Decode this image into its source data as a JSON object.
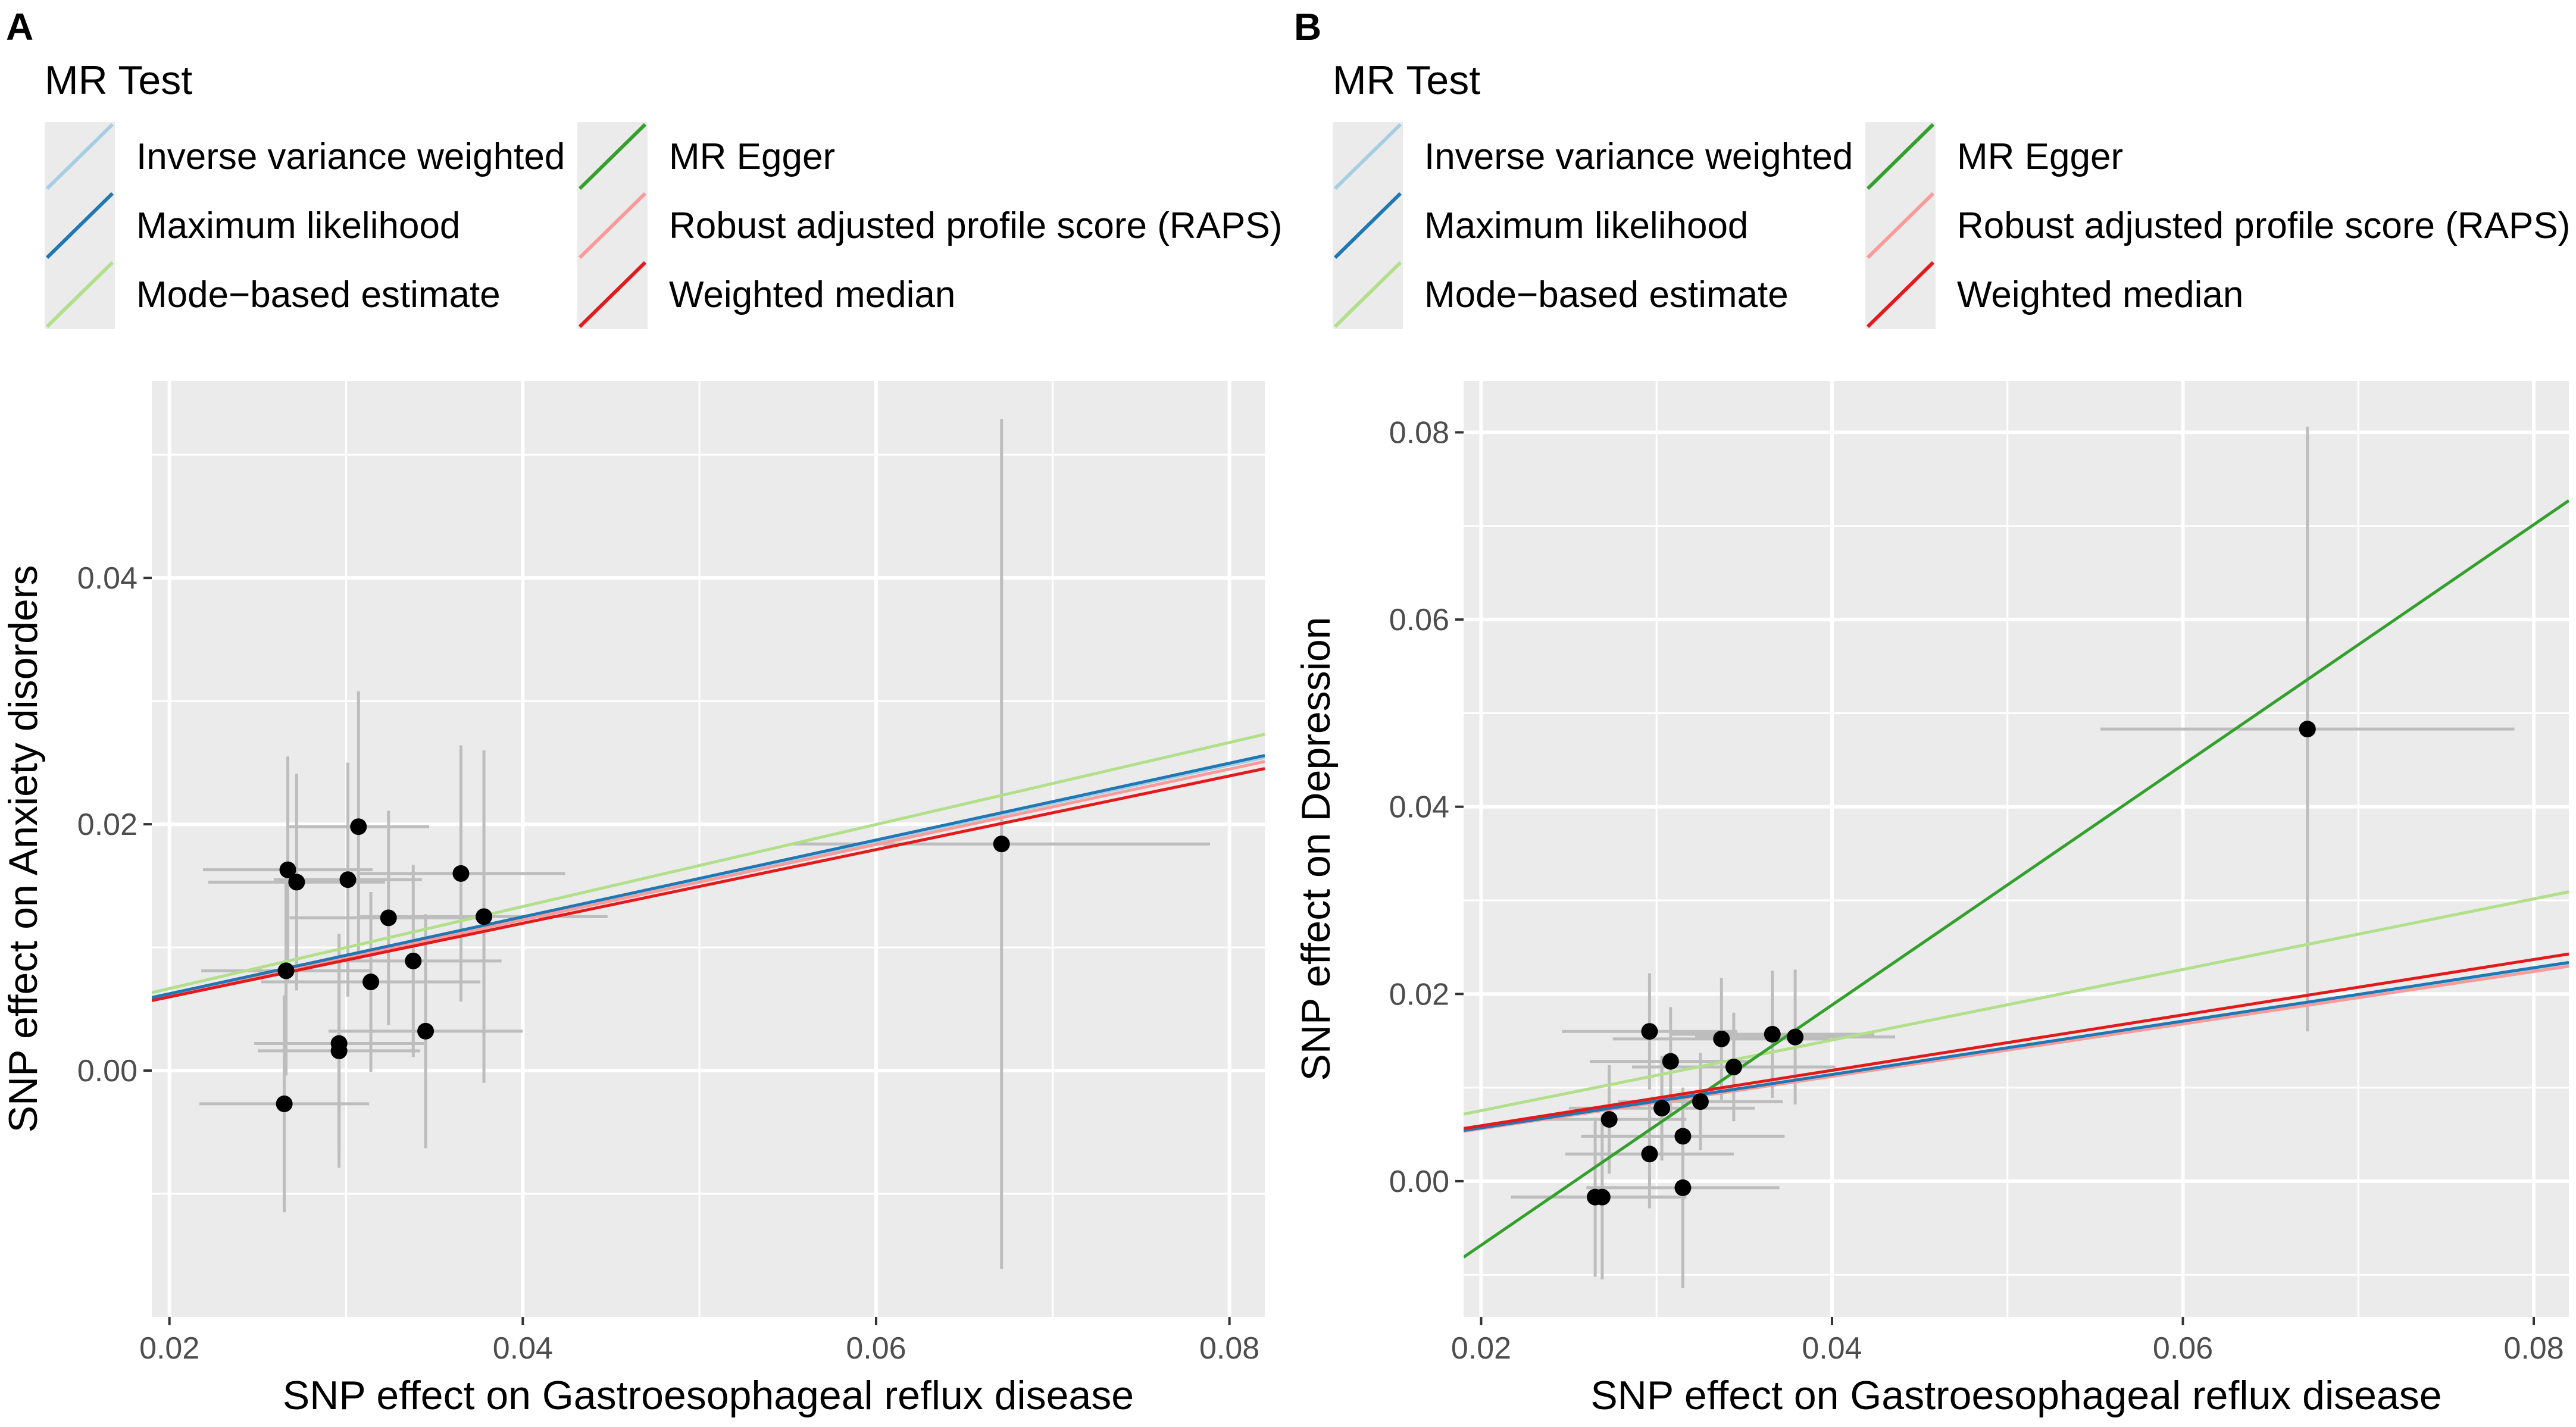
{
  "legend": {
    "title": "MR Test",
    "items": [
      {
        "label": "Inverse variance weighted",
        "color": "#a6cee3"
      },
      {
        "label": "Maximum likelihood",
        "color": "#1f78b4"
      },
      {
        "label": "Mode−based estimate",
        "color": "#b2df8a"
      },
      {
        "label": "MR Egger",
        "color": "#33a02c"
      },
      {
        "label": "Robust adjusted profile score (RAPS)",
        "color": "#fb9a99"
      },
      {
        "label": "Weighted median",
        "color": "#e31a1c"
      }
    ]
  },
  "chart_data": [
    {
      "panel": "A",
      "type": "scatter",
      "xlabel": "SNP effect on Gastroesophageal reflux disease",
      "ylabel": "SNP effect on Anxiety disorders",
      "xlim": [
        0.019,
        0.082
      ],
      "ylim": [
        -0.02,
        0.056
      ],
      "x_ticks": [
        0.02,
        0.04,
        0.06,
        0.08
      ],
      "x_tick_labels": [
        "0.02",
        "0.04",
        "0.06",
        "0.08"
      ],
      "y_ticks": [
        0.0,
        0.02,
        0.04
      ],
      "y_tick_labels": [
        "0.00",
        "0.02",
        "0.04"
      ],
      "points": [
        {
          "x": 0.0267,
          "y": 0.0163,
          "xerr": 0.0048,
          "yerr": 0.0092
        },
        {
          "x": 0.0272,
          "y": 0.0153,
          "xerr": 0.005,
          "yerr": 0.0088
        },
        {
          "x": 0.0266,
          "y": 0.0081,
          "xerr": 0.0048,
          "yerr": 0.0085
        },
        {
          "x": 0.0307,
          "y": 0.0198,
          "xerr": 0.004,
          "yerr": 0.011
        },
        {
          "x": 0.0301,
          "y": 0.0155,
          "xerr": 0.0042,
          "yerr": 0.0095
        },
        {
          "x": 0.0324,
          "y": 0.0124,
          "xerr": 0.0056,
          "yerr": 0.0087
        },
        {
          "x": 0.0365,
          "y": 0.016,
          "xerr": 0.0059,
          "yerr": 0.0104
        },
        {
          "x": 0.0378,
          "y": 0.0125,
          "xerr": 0.007,
          "yerr": 0.0135
        },
        {
          "x": 0.0314,
          "y": 0.0072,
          "xerr": 0.0062,
          "yerr": 0.0073
        },
        {
          "x": 0.0338,
          "y": 0.0089,
          "xerr": 0.005,
          "yerr": 0.0078
        },
        {
          "x": 0.0296,
          "y": 0.0022,
          "xerr": 0.0048,
          "yerr": 0.0088
        },
        {
          "x": 0.0296,
          "y": 0.0016,
          "xerr": 0.0046,
          "yerr": 0.0095
        },
        {
          "x": 0.0345,
          "y": 0.0032,
          "xerr": 0.0055,
          "yerr": 0.0095
        },
        {
          "x": 0.0265,
          "y": -0.0027,
          "xerr": 0.0048,
          "yerr": 0.0088
        },
        {
          "x": 0.0671,
          "y": 0.0184,
          "xerr": 0.0118,
          "yerr": 0.0345
        }
      ],
      "fits": [
        {
          "method": "Inverse variance weighted",
          "slope": 0.31,
          "intercept": 0.0
        },
        {
          "method": "Maximum likelihood",
          "slope": 0.312,
          "intercept": 0.0
        },
        {
          "method": "Mode−based estimate",
          "slope": 0.333,
          "intercept": 0.0
        },
        {
          "method": "Robust adjusted profile score (RAPS)",
          "slope": 0.306,
          "intercept": 0.0
        },
        {
          "method": "Weighted median",
          "slope": 0.299,
          "intercept": 0.0
        }
      ]
    },
    {
      "panel": "B",
      "type": "scatter",
      "xlabel": "SNP effect on Gastroesophageal reflux disease",
      "ylabel": "SNP effect on Depression",
      "xlim": [
        0.019,
        0.082
      ],
      "ylim": [
        -0.0145,
        0.0855
      ],
      "x_ticks": [
        0.02,
        0.04,
        0.06,
        0.08
      ],
      "x_tick_labels": [
        "0.02",
        "0.04",
        "0.06",
        "0.08"
      ],
      "y_ticks": [
        0.0,
        0.02,
        0.04,
        0.06,
        0.08
      ],
      "y_tick_labels": [
        "0.00",
        "0.02",
        "0.04",
        "0.06",
        "0.08"
      ],
      "points": [
        {
          "x": 0.0296,
          "y": 0.016,
          "xerr": 0.005,
          "yerr": 0.0062
        },
        {
          "x": 0.0308,
          "y": 0.0128,
          "xerr": 0.0046,
          "yerr": 0.0058
        },
        {
          "x": 0.0337,
          "y": 0.0152,
          "xerr": 0.0062,
          "yerr": 0.0065
        },
        {
          "x": 0.0366,
          "y": 0.0157,
          "xerr": 0.0058,
          "yerr": 0.0068
        },
        {
          "x": 0.0379,
          "y": 0.0154,
          "xerr": 0.0057,
          "yerr": 0.0072
        },
        {
          "x": 0.0344,
          "y": 0.0122,
          "xerr": 0.0058,
          "yerr": 0.0058
        },
        {
          "x": 0.0303,
          "y": 0.0078,
          "xerr": 0.0053,
          "yerr": 0.0056
        },
        {
          "x": 0.0325,
          "y": 0.0085,
          "xerr": 0.0047,
          "yerr": 0.0052
        },
        {
          "x": 0.0273,
          "y": 0.0066,
          "xerr": 0.0044,
          "yerr": 0.0058
        },
        {
          "x": 0.0315,
          "y": 0.0048,
          "xerr": 0.0058,
          "yerr": 0.0052
        },
        {
          "x": 0.0296,
          "y": 0.0029,
          "xerr": 0.0048,
          "yerr": 0.0058
        },
        {
          "x": 0.0315,
          "y": -0.0007,
          "xerr": 0.0055,
          "yerr": 0.0107
        },
        {
          "x": 0.0265,
          "y": -0.0017,
          "xerr": 0.0048,
          "yerr": 0.0085
        },
        {
          "x": 0.0269,
          "y": -0.0017,
          "xerr": 0.0048,
          "yerr": 0.0088
        },
        {
          "x": 0.0671,
          "y": 0.0483,
          "xerr": 0.0118,
          "yerr": 0.0323
        }
      ],
      "fits": [
        {
          "method": "Inverse variance weighted",
          "slope": 0.283,
          "intercept": 0.0
        },
        {
          "method": "Maximum likelihood",
          "slope": 0.285,
          "intercept": 0.0
        },
        {
          "method": "Mode−based estimate",
          "slope": 0.377,
          "intercept": 0.0
        },
        {
          "method": "MR Egger",
          "slope": 1.283,
          "intercept": -0.0325
        },
        {
          "method": "Robust adjusted profile score (RAPS)",
          "slope": 0.28,
          "intercept": 0.0
        },
        {
          "method": "Weighted median",
          "slope": 0.296,
          "intercept": 0.0
        }
      ]
    }
  ]
}
